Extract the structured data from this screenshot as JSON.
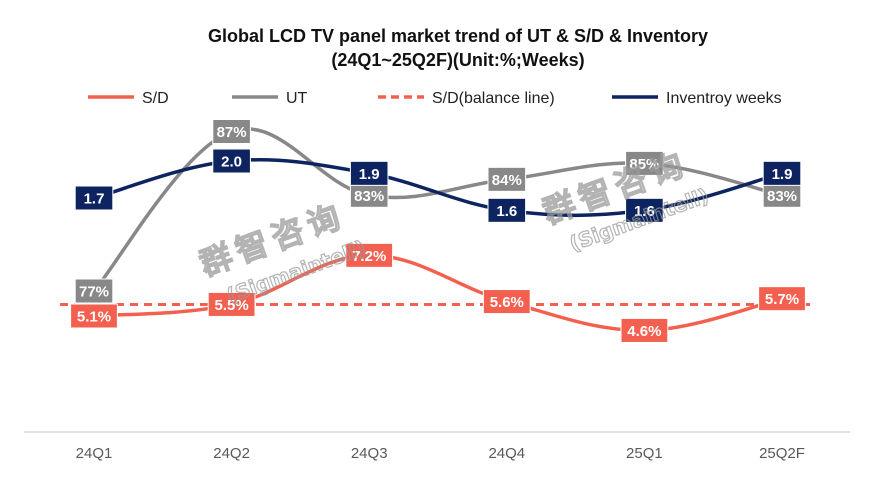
{
  "chart_data": {
    "type": "line",
    "title_line1": "Global LCD TV panel market trend of UT & S/D & Inventory",
    "title_line2": "(24Q1~25Q2F)(Unit:%;Weeks)",
    "categories": [
      "24Q1",
      "24Q2",
      "24Q3",
      "24Q4",
      "25Q1",
      "25Q2F"
    ],
    "legend_position": "top",
    "grid": false,
    "series": [
      {
        "name": "S/D",
        "color": "#f4604f",
        "values": [
          5.1,
          5.5,
          7.2,
          5.6,
          4.6,
          5.7
        ],
        "labels": [
          "5.1%",
          "5.5%",
          "7.2%",
          "5.6%",
          "4.6%",
          "5.7%"
        ]
      },
      {
        "name": "UT",
        "color": "#888888",
        "values": [
          77,
          87,
          83,
          84,
          85,
          83
        ],
        "labels": [
          "77%",
          "87%",
          "83%",
          "84%",
          "85%",
          "83%"
        ]
      },
      {
        "name": "S/D(balance line)",
        "color": "#f4604f",
        "style": "dashed",
        "values": [
          5.5,
          5.5,
          5.5,
          5.5,
          5.5,
          5.5
        ]
      },
      {
        "name": "Inventroy weeks",
        "color": "#0d2461",
        "values": [
          1.7,
          2.0,
          1.9,
          1.6,
          1.6,
          1.9
        ],
        "labels": [
          "1.7",
          "2.0",
          "1.9",
          "1.6",
          "1.6",
          "1.9"
        ]
      }
    ]
  },
  "watermark": {
    "cn": "群智咨询",
    "en": "(Sigmaintell)"
  }
}
